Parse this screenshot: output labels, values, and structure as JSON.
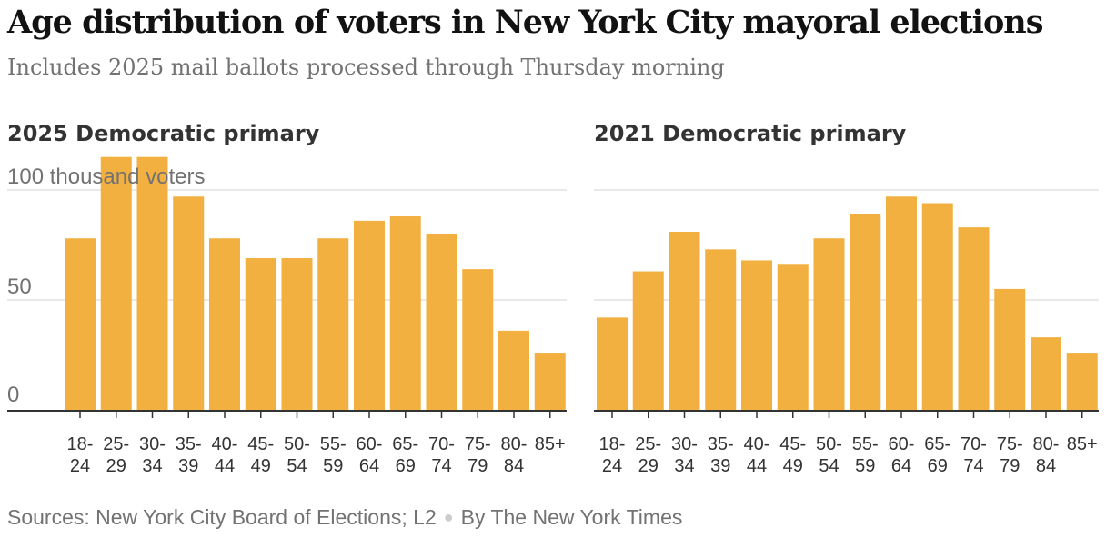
{
  "title": "Age distribution of voters in New York City mayoral elections",
  "subtitle": "Includes 2025 mail ballots processed through Thursday morning",
  "footer": {
    "sources": "Sources: New York City Board of Elections; L2",
    "byline": "By The New York Times"
  },
  "colors": {
    "bar": "#f2b040",
    "grid": "#e2e2e2",
    "axis": "#333333",
    "tick_text": "#333333",
    "y_label": "#727272"
  },
  "chart_data": [
    {
      "type": "bar",
      "title": "2025 Democratic primary",
      "ylabel": "100 thousand voters",
      "ylim": [
        0,
        100
      ],
      "yticks": [
        0,
        50,
        100
      ],
      "ytick_labels": [
        "0",
        "50",
        "100 thousand voters"
      ],
      "categories": [
        [
          "18-",
          "24"
        ],
        [
          "25-",
          "29"
        ],
        [
          "30-",
          "34"
        ],
        [
          "35-",
          "39"
        ],
        [
          "40-",
          "44"
        ],
        [
          "45-",
          "49"
        ],
        [
          "50-",
          "54"
        ],
        [
          "55-",
          "59"
        ],
        [
          "60-",
          "64"
        ],
        [
          "65-",
          "69"
        ],
        [
          "70-",
          "74"
        ],
        [
          "75-",
          "79"
        ],
        [
          "80-",
          "84"
        ],
        [
          "85+",
          ""
        ]
      ],
      "values": [
        78,
        115,
        115,
        97,
        78,
        69,
        69,
        78,
        86,
        88,
        80,
        64,
        36,
        26
      ]
    },
    {
      "type": "bar",
      "title": "2021 Democratic primary",
      "ylim": [
        0,
        100
      ],
      "yticks": [
        0,
        50,
        100
      ],
      "ytick_labels": [
        "",
        "",
        ""
      ],
      "categories": [
        [
          "18-",
          "24"
        ],
        [
          "25-",
          "29"
        ],
        [
          "30-",
          "34"
        ],
        [
          "35-",
          "39"
        ],
        [
          "40-",
          "44"
        ],
        [
          "45-",
          "49"
        ],
        [
          "50-",
          "54"
        ],
        [
          "55-",
          "59"
        ],
        [
          "60-",
          "64"
        ],
        [
          "65-",
          "69"
        ],
        [
          "70-",
          "74"
        ],
        [
          "75-",
          "79"
        ],
        [
          "80-",
          "84"
        ],
        [
          "85+",
          ""
        ]
      ],
      "values": [
        42,
        63,
        81,
        73,
        68,
        66,
        78,
        89,
        97,
        94,
        83,
        55,
        33,
        26
      ]
    }
  ]
}
